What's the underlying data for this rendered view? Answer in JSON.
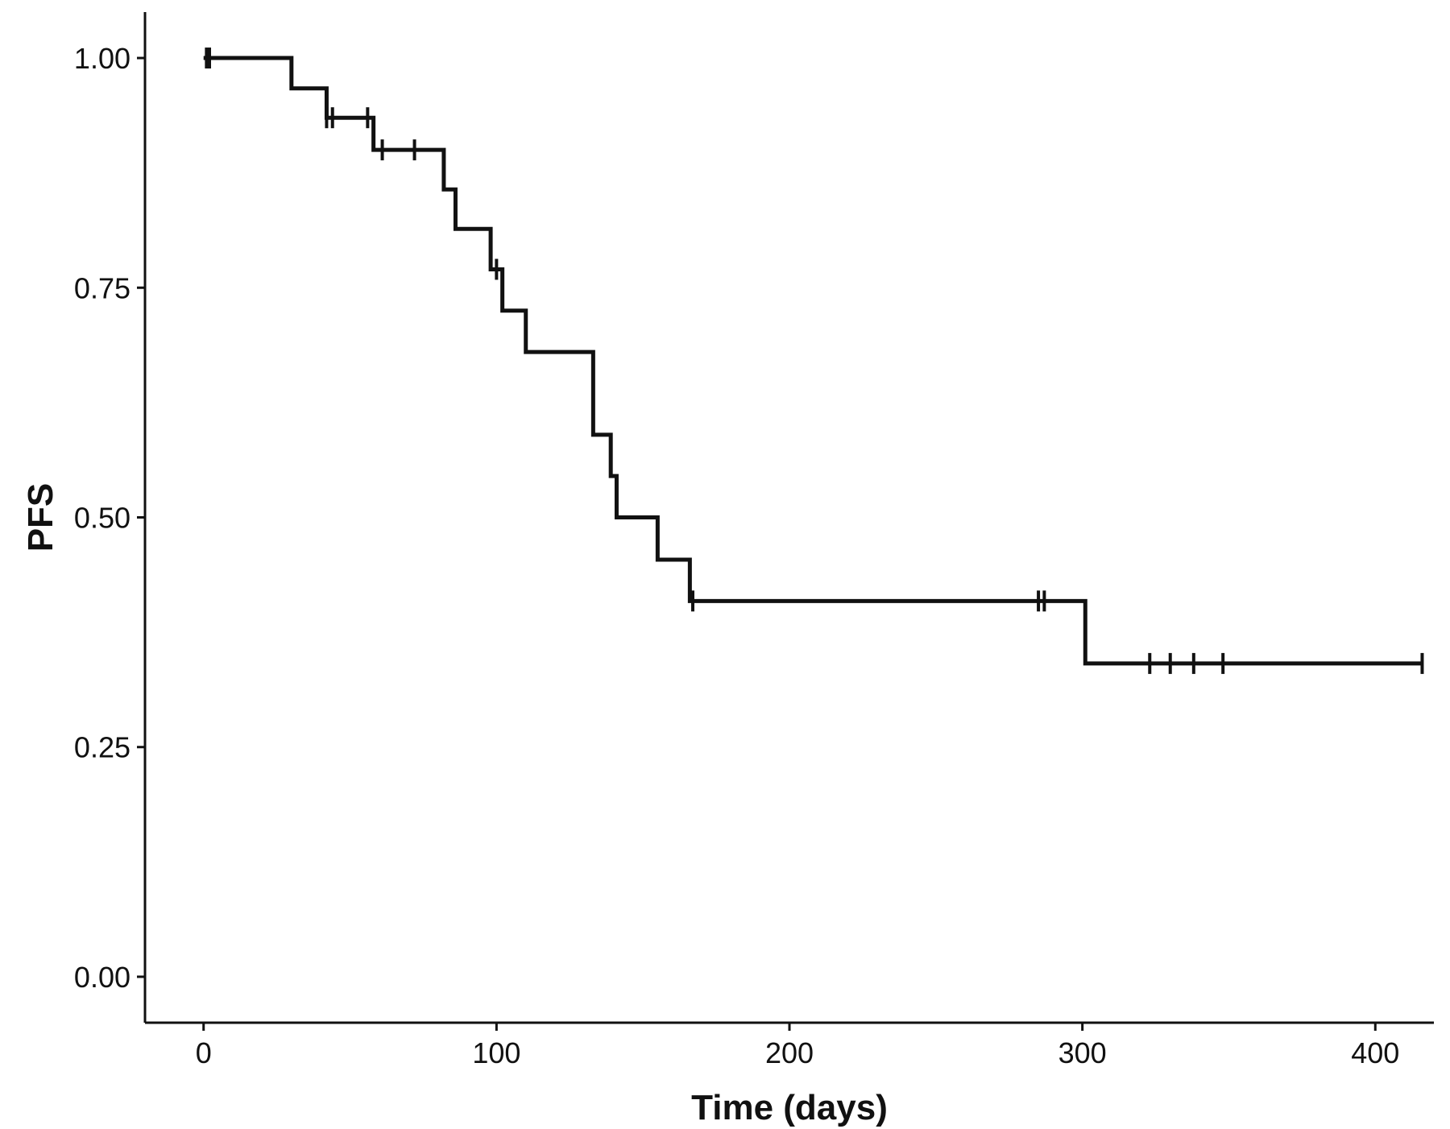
{
  "chart_data": {
    "type": "line",
    "subtype": "kaplan-meier-step",
    "title": "",
    "xlabel": "Time (days)",
    "ylabel": "PFS",
    "xlim": [
      -20,
      420
    ],
    "ylim": [
      -0.05,
      1.05
    ],
    "x_ticks": [
      0,
      100,
      200,
      300,
      400
    ],
    "x_tick_labels": [
      "0",
      "100",
      "200",
      "300",
      "400"
    ],
    "y_ticks": [
      0.0,
      0.25,
      0.5,
      0.75,
      1.0
    ],
    "y_tick_labels": [
      "0.00",
      "0.25",
      "0.50",
      "0.75",
      "1.00"
    ],
    "grid": false,
    "legend": "none",
    "colors": {
      "line": "#111111",
      "axis": "#111111"
    },
    "series": [
      {
        "steps": [
          {
            "x": 0,
            "y": 1.0
          },
          {
            "x": 30,
            "y": 0.967
          },
          {
            "x": 42,
            "y": 0.935
          },
          {
            "x": 58,
            "y": 0.9
          },
          {
            "x": 82,
            "y": 0.857
          },
          {
            "x": 86,
            "y": 0.814
          },
          {
            "x": 98,
            "y": 0.77
          },
          {
            "x": 102,
            "y": 0.725
          },
          {
            "x": 110,
            "y": 0.68
          },
          {
            "x": 133,
            "y": 0.59
          },
          {
            "x": 139,
            "y": 0.545
          },
          {
            "x": 141,
            "y": 0.5
          },
          {
            "x": 155,
            "y": 0.454
          },
          {
            "x": 166,
            "y": 0.409
          },
          {
            "x": 301,
            "y": 0.341
          }
        ],
        "end_x": 416,
        "censored": [
          {
            "x": 1,
            "y": 1.0
          },
          {
            "x": 2,
            "y": 1.0
          },
          {
            "x": 42,
            "y": 0.935
          },
          {
            "x": 44,
            "y": 0.935
          },
          {
            "x": 56,
            "y": 0.935
          },
          {
            "x": 61,
            "y": 0.9
          },
          {
            "x": 72,
            "y": 0.9
          },
          {
            "x": 100,
            "y": 0.77
          },
          {
            "x": 167,
            "y": 0.409
          },
          {
            "x": 285,
            "y": 0.409
          },
          {
            "x": 287,
            "y": 0.409
          },
          {
            "x": 323,
            "y": 0.341
          },
          {
            "x": 330,
            "y": 0.341
          },
          {
            "x": 338,
            "y": 0.341
          },
          {
            "x": 348,
            "y": 0.341
          },
          {
            "x": 416,
            "y": 0.341
          }
        ]
      }
    ]
  }
}
